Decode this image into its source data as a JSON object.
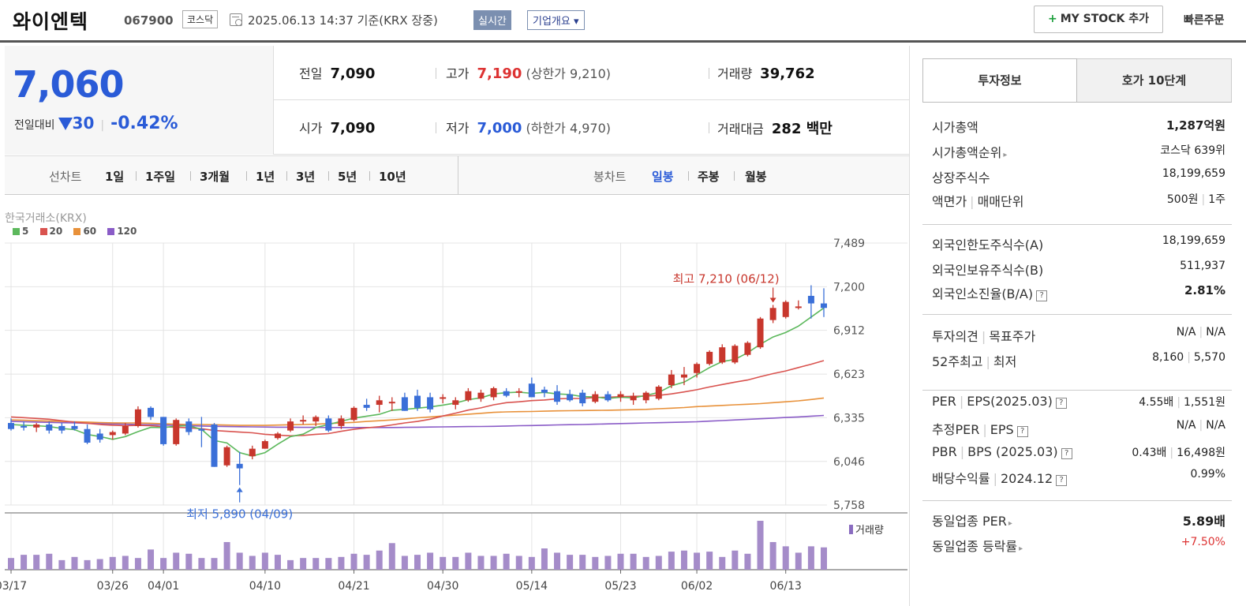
{
  "header": {
    "stock_name": "와이엔텍",
    "stock_code": "067900",
    "market": "코스닥",
    "datetime": "2025.06.13 14:37 기준(KRX 장중)",
    "realtime_label": "실시간",
    "company_label": "기업개요 ▾",
    "mystock_label": "MY STOCK 추가",
    "quick_order": "빠른주문"
  },
  "price": {
    "current": "7,060",
    "change_label": "전일대비",
    "change_amount": "30",
    "change_pct": "-0.42%",
    "prev_close_label": "전일",
    "prev_close": "7,090",
    "high_label": "고가",
    "high": "7,190",
    "upper_limit": "(상한가 9,210)",
    "volume_label": "거래량",
    "volume": "39,762",
    "open_label": "시가",
    "open": "7,090",
    "low_label": "저가",
    "low": "7,000",
    "lower_limit": "(하한가 4,970)",
    "turnover_label": "거래대금",
    "turnover": "282 백만"
  },
  "period_bar": {
    "line_label": "선차트",
    "line_items": [
      "1일",
      "1주일",
      "3개월",
      "1년",
      "3년",
      "5년",
      "10년"
    ],
    "candle_label": "봉차트",
    "candle_items": [
      "일봉",
      "주봉",
      "월봉"
    ],
    "active_candle": "일봉"
  },
  "chart_data": {
    "type": "candlestick",
    "exchange_label": "한국거래소(KRX)",
    "legend": [
      {
        "name": "5",
        "color": "#5cb85c"
      },
      {
        "name": "20",
        "color": "#d9534f"
      },
      {
        "name": "60",
        "color": "#e8913a"
      },
      {
        "name": "120",
        "color": "#8a5cc7"
      }
    ],
    "y_ticks": [
      "7,489",
      "7,200",
      "6,912",
      "6,623",
      "6,335",
      "6,046",
      "5,758"
    ],
    "y_range": [
      5758,
      7489
    ],
    "x_ticks": [
      "03/17",
      "03/26",
      "04/01",
      "04/10",
      "04/21",
      "04/30",
      "05/14",
      "05/23",
      "06/02",
      "06/13"
    ],
    "x_tick_index": [
      0,
      8,
      12,
      20,
      27,
      34,
      41,
      48,
      54,
      61
    ],
    "high_annotation": "최고 7,210 (06/12)",
    "low_annotation": "최저 5,890 (04/09)",
    "high_index": 60,
    "low_index": 18,
    "volume_label": "거래량",
    "candles": [
      {
        "o": 6300,
        "h": 6330,
        "l": 6250,
        "c": 6260
      },
      {
        "o": 6280,
        "h": 6310,
        "l": 6250,
        "c": 6270
      },
      {
        "o": 6270,
        "h": 6300,
        "l": 6240,
        "c": 6290
      },
      {
        "o": 6290,
        "h": 6310,
        "l": 6230,
        "c": 6250
      },
      {
        "o": 6280,
        "h": 6300,
        "l": 6230,
        "c": 6250
      },
      {
        "o": 6280,
        "h": 6310,
        "l": 6250,
        "c": 6260
      },
      {
        "o": 6260,
        "h": 6290,
        "l": 6160,
        "c": 6170
      },
      {
        "o": 6230,
        "h": 6260,
        "l": 6170,
        "c": 6190
      },
      {
        "o": 6220,
        "h": 6250,
        "l": 6190,
        "c": 6240
      },
      {
        "o": 6230,
        "h": 6300,
        "l": 6220,
        "c": 6280
      },
      {
        "o": 6280,
        "h": 6410,
        "l": 6270,
        "c": 6390
      },
      {
        "o": 6400,
        "h": 6410,
        "l": 6320,
        "c": 6340
      },
      {
        "o": 6340,
        "h": 6340,
        "l": 6150,
        "c": 6160
      },
      {
        "o": 6160,
        "h": 6330,
        "l": 6150,
        "c": 6320
      },
      {
        "o": 6310,
        "h": 6330,
        "l": 6220,
        "c": 6240
      },
      {
        "o": 6260,
        "h": 6340,
        "l": 6140,
        "c": 6250
      },
      {
        "o": 6290,
        "h": 6300,
        "l": 6010,
        "c": 6010
      },
      {
        "o": 6020,
        "h": 6150,
        "l": 6010,
        "c": 6140
      },
      {
        "o": 6030,
        "h": 6110,
        "l": 5890,
        "c": 6000
      },
      {
        "o": 6080,
        "h": 6150,
        "l": 6060,
        "c": 6130
      },
      {
        "o": 6130,
        "h": 6190,
        "l": 6130,
        "c": 6180
      },
      {
        "o": 6200,
        "h": 6240,
        "l": 6190,
        "c": 6230
      },
      {
        "o": 6250,
        "h": 6330,
        "l": 6240,
        "c": 6310
      },
      {
        "o": 6310,
        "h": 6350,
        "l": 6290,
        "c": 6320
      },
      {
        "o": 6310,
        "h": 6350,
        "l": 6280,
        "c": 6340
      },
      {
        "o": 6330,
        "h": 6350,
        "l": 6240,
        "c": 6250
      },
      {
        "o": 6280,
        "h": 6350,
        "l": 6260,
        "c": 6330
      },
      {
        "o": 6320,
        "h": 6410,
        "l": 6310,
        "c": 6400
      },
      {
        "o": 6420,
        "h": 6460,
        "l": 6380,
        "c": 6400
      },
      {
        "o": 6420,
        "h": 6480,
        "l": 6370,
        "c": 6450
      },
      {
        "o": 6430,
        "h": 6470,
        "l": 6380,
        "c": 6440
      },
      {
        "o": 6470,
        "h": 6500,
        "l": 6380,
        "c": 6380
      },
      {
        "o": 6480,
        "h": 6520,
        "l": 6380,
        "c": 6400
      },
      {
        "o": 6470,
        "h": 6500,
        "l": 6370,
        "c": 6390
      },
      {
        "o": 6470,
        "h": 6490,
        "l": 6430,
        "c": 6470
      },
      {
        "o": 6420,
        "h": 6470,
        "l": 6390,
        "c": 6450
      },
      {
        "o": 6450,
        "h": 6530,
        "l": 6440,
        "c": 6510
      },
      {
        "o": 6460,
        "h": 6520,
        "l": 6440,
        "c": 6500
      },
      {
        "o": 6470,
        "h": 6540,
        "l": 6450,
        "c": 6530
      },
      {
        "o": 6510,
        "h": 6530,
        "l": 6470,
        "c": 6480
      },
      {
        "o": 6500,
        "h": 6530,
        "l": 6470,
        "c": 6510
      },
      {
        "o": 6560,
        "h": 6600,
        "l": 6470,
        "c": 6470
      },
      {
        "o": 6520,
        "h": 6540,
        "l": 6470,
        "c": 6500
      },
      {
        "o": 6510,
        "h": 6550,
        "l": 6420,
        "c": 6440
      },
      {
        "o": 6490,
        "h": 6520,
        "l": 6440,
        "c": 6450
      },
      {
        "o": 6500,
        "h": 6520,
        "l": 6410,
        "c": 6430
      },
      {
        "o": 6440,
        "h": 6510,
        "l": 6430,
        "c": 6490
      },
      {
        "o": 6490,
        "h": 6510,
        "l": 6440,
        "c": 6450
      },
      {
        "o": 6470,
        "h": 6510,
        "l": 6440,
        "c": 6490
      },
      {
        "o": 6450,
        "h": 6500,
        "l": 6420,
        "c": 6480
      },
      {
        "o": 6450,
        "h": 6510,
        "l": 6430,
        "c": 6500
      },
      {
        "o": 6460,
        "h": 6550,
        "l": 6450,
        "c": 6540
      },
      {
        "o": 6550,
        "h": 6650,
        "l": 6530,
        "c": 6620
      },
      {
        "o": 6600,
        "h": 6670,
        "l": 6550,
        "c": 6620
      },
      {
        "o": 6630,
        "h": 6700,
        "l": 6600,
        "c": 6690
      },
      {
        "o": 6690,
        "h": 6780,
        "l": 6680,
        "c": 6770
      },
      {
        "o": 6700,
        "h": 6820,
        "l": 6690,
        "c": 6800
      },
      {
        "o": 6700,
        "h": 6820,
        "l": 6690,
        "c": 6810
      },
      {
        "o": 6750,
        "h": 6840,
        "l": 6740,
        "c": 6830
      },
      {
        "o": 6800,
        "h": 7000,
        "l": 6790,
        "c": 6990
      },
      {
        "o": 6980,
        "h": 7080,
        "l": 6960,
        "c": 7060
      },
      {
        "o": 7000,
        "h": 7110,
        "l": 6990,
        "c": 7100
      },
      {
        "o": 7070,
        "h": 7110,
        "l": 7050,
        "c": 7070
      },
      {
        "o": 7140,
        "h": 7210,
        "l": 6990,
        "c": 7090
      },
      {
        "o": 7090,
        "h": 7190,
        "l": 7000,
        "c": 7060
      }
    ],
    "ma": {
      "5": [
        6290,
        6285,
        6282,
        6276,
        6264,
        6256,
        6224,
        6210,
        6192,
        6210,
        6243,
        6271,
        6269,
        6280,
        6282,
        6258,
        6184,
        6168,
        6104,
        6082,
        6104,
        6160,
        6210,
        6226,
        6270,
        6290,
        6311,
        6332,
        6345,
        6357,
        6384,
        6390,
        6398,
        6406,
        6418,
        6432,
        6454,
        6466,
        6492,
        6500,
        6504,
        6496,
        6502,
        6492,
        6488,
        6474,
        6472,
        6462,
        6470,
        6466,
        6482,
        6502,
        6546,
        6570,
        6618,
        6666,
        6706,
        6720,
        6764,
        6820,
        6868,
        6898,
        6940,
        7000,
        7060
      ],
      "20": [
        6340,
        6335,
        6330,
        6325,
        6315,
        6305,
        6298,
        6290,
        6285,
        6282,
        6284,
        6282,
        6274,
        6272,
        6268,
        6262,
        6250,
        6245,
        6240,
        6235,
        6225,
        6220,
        6215,
        6218,
        6225,
        6230,
        6245,
        6258,
        6268,
        6275,
        6287,
        6300,
        6310,
        6325,
        6346,
        6365,
        6385,
        6400,
        6420,
        6434,
        6440,
        6448,
        6452,
        6460,
        6462,
        6462,
        6468,
        6470,
        6474,
        6476,
        6478,
        6482,
        6492,
        6505,
        6520,
        6538,
        6554,
        6570,
        6584,
        6606,
        6626,
        6644,
        6666,
        6688,
        6712
      ],
      "60": [
        6320,
        6318,
        6315,
        6313,
        6310,
        6308,
        6306,
        6303,
        6301,
        6300,
        6300,
        6298,
        6295,
        6292,
        6290,
        6290,
        6288,
        6286,
        6284,
        6284,
        6284,
        6286,
        6288,
        6290,
        6292,
        6296,
        6300,
        6304,
        6310,
        6315,
        6320,
        6327,
        6334,
        6340,
        6346,
        6352,
        6358,
        6364,
        6370,
        6373,
        6375,
        6376,
        6378,
        6380,
        6381,
        6382,
        6383,
        6384,
        6386,
        6388,
        6390,
        6394,
        6398,
        6402,
        6408,
        6412,
        6416,
        6420,
        6424,
        6428,
        6434,
        6440,
        6446,
        6455,
        6465
      ],
      "120": [
        6310,
        6308,
        6306,
        6304,
        6302,
        6300,
        6298,
        6296,
        6294,
        6292,
        6290,
        6288,
        6286,
        6284,
        6282,
        6280,
        6278,
        6276,
        6275,
        6274,
        6273,
        6272,
        6272,
        6271,
        6271,
        6270,
        6270,
        6270,
        6270,
        6270,
        6270,
        6271,
        6272,
        6273,
        6274,
        6275,
        6276,
        6277,
        6278,
        6280,
        6282,
        6283,
        6285,
        6287,
        6289,
        6290,
        6292,
        6294,
        6296,
        6298,
        6300,
        6302,
        6304,
        6306,
        6308,
        6312,
        6316,
        6320,
        6324,
        6328,
        6332,
        6336,
        6340,
        6345,
        6350
      ]
    },
    "volumes": [
      11,
      14,
      14,
      15,
      9,
      12,
      9,
      10,
      12,
      13,
      11,
      19,
      11,
      16,
      15,
      11,
      11,
      26,
      16,
      13,
      16,
      14,
      9,
      11,
      11,
      11,
      12,
      15,
      14,
      18,
      25,
      13,
      14,
      16,
      12,
      12,
      16,
      13,
      13,
      15,
      13,
      12,
      20,
      16,
      14,
      14,
      12,
      13,
      15,
      15,
      12,
      13,
      17,
      18,
      16,
      17,
      12,
      18,
      15,
      46,
      26,
      22,
      16,
      22,
      21
    ]
  },
  "side": {
    "tab1": "투자정보",
    "tab2": "호가 10단계",
    "market_cap_label": "시가총액",
    "market_cap": "1,287억원",
    "market_cap_rank_label": "시가총액순위",
    "market_cap_rank": "코스닥 639위",
    "shares_label": "상장주식수",
    "shares": "18,199,659",
    "face_label": "액면가",
    "trade_unit_label": "매매단위",
    "face_value": "500원",
    "trade_unit": "1주",
    "foreign_limit_label": "외국인한도주식수(A)",
    "foreign_limit": "18,199,659",
    "foreign_hold_label": "외국인보유주식수(B)",
    "foreign_hold": "511,937",
    "foreign_ratio_label": "외국인소진율(B/A)",
    "foreign_ratio": "2.81%",
    "opinion_label": "투자의견",
    "target_label": "목표주가",
    "opinion": "N/A",
    "target": "N/A",
    "w52_label": "52주최고",
    "w52_low_label": "최저",
    "w52_high": "8,160",
    "w52_low": "5,570",
    "per_label": "PER",
    "eps_label": "EPS(2025.03)",
    "per": "4.55배",
    "eps": "1,551원",
    "est_per_label": "추정PER",
    "est_eps_label": "EPS",
    "est_per": "N/A",
    "est_eps": "N/A",
    "pbr_label": "PBR",
    "bps_label": "BPS (2025.03)",
    "pbr": "0.43배",
    "bps": "16,498원",
    "div_label": "배당수익률",
    "div_year": "2024.12",
    "div": "0.99%",
    "ind_per_label": "동일업종 PER",
    "ind_per": "5.89배",
    "ind_chg_label": "동일업종 등락률",
    "ind_chg": "+7.50%"
  }
}
